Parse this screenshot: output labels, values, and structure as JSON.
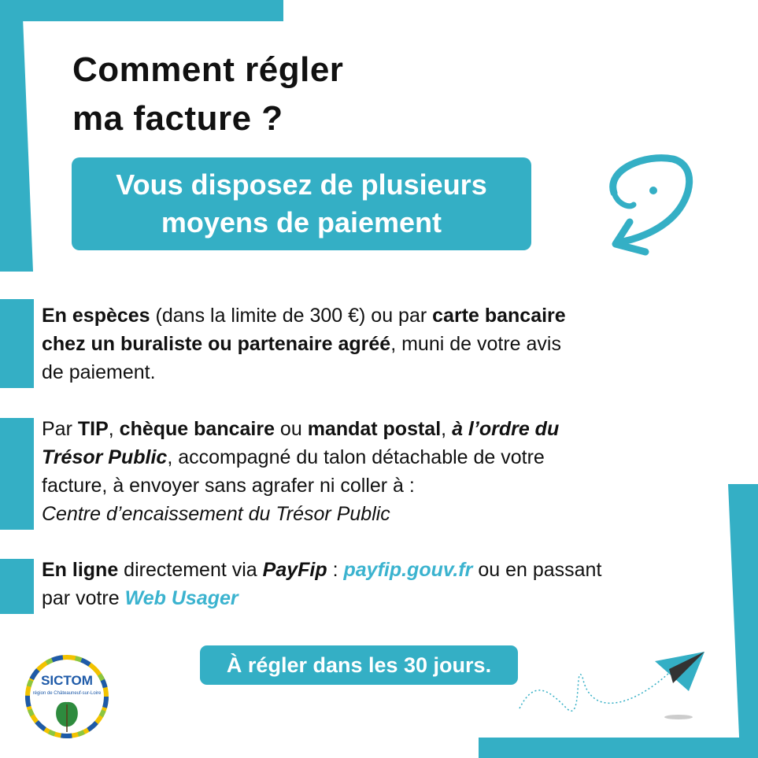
{
  "title": {
    "line1": "Comment régler",
    "line2": "ma facture ?"
  },
  "subtitle": {
    "line1": "Vous disposez de plusieurs",
    "line2": "moyens de paiement"
  },
  "paragraphs": [
    {
      "lines": [
        [
          {
            "t": "En espèces",
            "s": "b"
          },
          {
            "t": " (dans la limite de 300 €) ou par "
          },
          {
            "t": "carte bancaire",
            "s": "b"
          }
        ],
        [
          {
            "t": "chez un buraliste ou partenaire agréé",
            "s": "b"
          },
          {
            "t": ", muni de votre avis"
          }
        ],
        [
          {
            "t": "de paiement."
          }
        ]
      ]
    },
    {
      "lines": [
        [
          {
            "t": "Par "
          },
          {
            "t": "TIP",
            "s": "b"
          },
          {
            "t": ", "
          },
          {
            "t": "chèque bancaire",
            "s": "b"
          },
          {
            "t": " ou "
          },
          {
            "t": "mandat postal",
            "s": "b"
          },
          {
            "t": ", "
          },
          {
            "t": "à l’ordre du",
            "s": "b i"
          }
        ],
        [
          {
            "t": "Trésor Public",
            "s": "b i"
          },
          {
            "t": ", accompagné du talon détachable de votre"
          }
        ],
        [
          {
            "t": "facture, à envoyer sans agrafer ni coller à :"
          }
        ],
        [
          {
            "t": "Centre d’encaissement du Trésor Public",
            "s": "i"
          }
        ]
      ]
    },
    {
      "lines": [
        [
          {
            "t": "En ligne",
            "s": "b"
          },
          {
            "t": " directement via "
          },
          {
            "t": "PayFip",
            "s": "b i"
          },
          {
            "t": " : "
          },
          {
            "t": "payfip.gouv.fr",
            "s": "link"
          },
          {
            "t": " ou en passant"
          }
        ],
        [
          {
            "t": "par votre "
          },
          {
            "t": "Web Usager",
            "s": "link"
          }
        ]
      ]
    }
  ],
  "deadline": "À régler dans les 30 jours.",
  "logo": {
    "name": "SICTOM",
    "subtitle": "région de Châteauneuf-sur-Loire"
  },
  "icons": {
    "curl": "question-curl-arrow-icon",
    "plane": "paper-plane-icon"
  },
  "colors": {
    "accent": "#34afc5",
    "link": "#3bb3cf",
    "text": "#111111"
  }
}
